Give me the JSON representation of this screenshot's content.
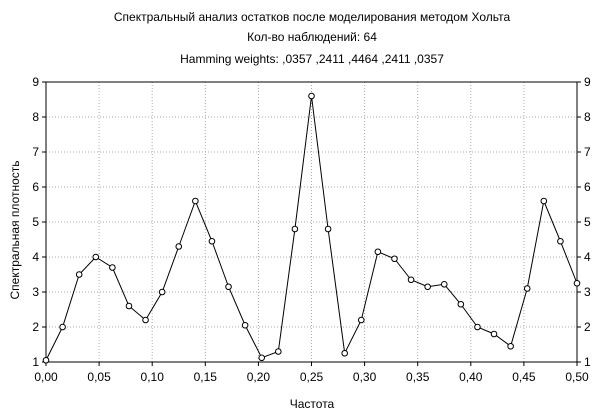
{
  "chart_data": {
    "type": "line",
    "title": "Спектральный анализ остатков после моделирования методом Хольта",
    "subtitle_lines": [
      "Кол-во наблюдений: 64",
      "Hamming weights: ,0357  ,2411  ,4464  ,2411  ,0357"
    ],
    "xlabel": "Частота",
    "ylabel": "Спектральная плотность",
    "xlim": [
      0,
      0.5
    ],
    "ylim": [
      1,
      9
    ],
    "grid": true,
    "legend": "none",
    "x_ticks": [
      0,
      0.05,
      0.1,
      0.15,
      0.2,
      0.25,
      0.3,
      0.35,
      0.4,
      0.45,
      0.5
    ],
    "x_tick_labels": [
      "0,00",
      "0,05",
      "0,10",
      "0,15",
      "0,20",
      "0,25",
      "0,30",
      "0,35",
      "0,40",
      "0,45",
      "0,50"
    ],
    "y_ticks": [
      1,
      2,
      3,
      4,
      5,
      6,
      7,
      8,
      9
    ],
    "y_tick_labels": [
      "1",
      "2",
      "3",
      "4",
      "5",
      "6",
      "7",
      "8",
      "9"
    ],
    "series": [
      {
        "x": [
          0,
          0.015625,
          0.03125,
          0.046875,
          0.0625,
          0.078125,
          0.09375,
          0.109375,
          0.125,
          0.140625,
          0.15625,
          0.171875,
          0.1875,
          0.203125,
          0.21875,
          0.234375,
          0.25,
          0.265625,
          0.28125,
          0.296875,
          0.3125,
          0.328125,
          0.34375,
          0.359375,
          0.375,
          0.390625,
          0.40625,
          0.421875,
          0.4375,
          0.453125,
          0.46875,
          0.484375,
          0.5
        ],
        "values": [
          1.05,
          2.0,
          3.5,
          4.0,
          3.7,
          2.6,
          2.2,
          3.0,
          4.3,
          5.6,
          4.45,
          3.15,
          2.05,
          1.12,
          1.3,
          4.8,
          8.6,
          4.8,
          1.25,
          2.2,
          4.15,
          3.95,
          3.35,
          3.15,
          3.22,
          2.65,
          2.0,
          1.8,
          1.45,
          3.1,
          5.6,
          4.45,
          3.25
        ]
      }
    ],
    "colors": {
      "line": "#000000",
      "marker_fill": "#ffffff",
      "grid": "#aaaaaa",
      "axes": "#000000",
      "background": "#ffffff"
    }
  }
}
